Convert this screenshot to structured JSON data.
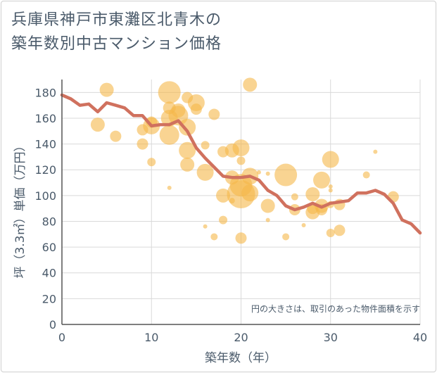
{
  "title_lines": [
    "兵庫県神戸市東灘区北青木の",
    "築年数別中古マンション価格"
  ],
  "colors": {
    "bubble": "#f5b84a",
    "line": "#d0715e",
    "grid": "#d9d9d9",
    "axis_text": "#4a5a6a"
  },
  "chart_data": {
    "type": "scatter",
    "xlabel": "築年数（年）",
    "ylabel": "坪（3.3㎡）単価（万円）",
    "xlim": [
      0,
      40
    ],
    "ylim": [
      0,
      190
    ],
    "x_ticks": [
      0,
      10,
      20,
      30,
      40
    ],
    "y_ticks": [
      0,
      20,
      40,
      60,
      80,
      100,
      120,
      140,
      160,
      180
    ],
    "grid": true,
    "note": "円の大きさは、取引のあった物件面積を示す",
    "bubbles": [
      {
        "x": 4,
        "y": 155,
        "r": 10
      },
      {
        "x": 5,
        "y": 182,
        "r": 10
      },
      {
        "x": 6,
        "y": 146,
        "r": 8
      },
      {
        "x": 9,
        "y": 140,
        "r": 8
      },
      {
        "x": 9,
        "y": 151,
        "r": 8
      },
      {
        "x": 10,
        "y": 154,
        "r": 12
      },
      {
        "x": 10,
        "y": 157,
        "r": 8
      },
      {
        "x": 10,
        "y": 126,
        "r": 6
      },
      {
        "x": 12,
        "y": 180,
        "r": 16
      },
      {
        "x": 12,
        "y": 168,
        "r": 9
      },
      {
        "x": 12,
        "y": 160,
        "r": 12
      },
      {
        "x": 12,
        "y": 147,
        "r": 14
      },
      {
        "x": 12,
        "y": 106,
        "r": 3
      },
      {
        "x": 13,
        "y": 166,
        "r": 10
      },
      {
        "x": 13,
        "y": 162,
        "r": 14
      },
      {
        "x": 14,
        "y": 176,
        "r": 8
      },
      {
        "x": 14,
        "y": 153,
        "r": 12
      },
      {
        "x": 14,
        "y": 135,
        "r": 12
      },
      {
        "x": 14,
        "y": 124,
        "r": 10
      },
      {
        "x": 15,
        "y": 172,
        "r": 12
      },
      {
        "x": 15,
        "y": 167,
        "r": 8
      },
      {
        "x": 16,
        "y": 139,
        "r": 6
      },
      {
        "x": 16,
        "y": 118,
        "r": 12
      },
      {
        "x": 16,
        "y": 76,
        "r": 3
      },
      {
        "x": 17,
        "y": 163,
        "r": 8
      },
      {
        "x": 17,
        "y": 68,
        "r": 5
      },
      {
        "x": 18,
        "y": 134,
        "r": 8
      },
      {
        "x": 18,
        "y": 100,
        "r": 10
      },
      {
        "x": 18,
        "y": 81,
        "r": 6
      },
      {
        "x": 19,
        "y": 135,
        "r": 10
      },
      {
        "x": 19,
        "y": 114,
        "r": 10
      },
      {
        "x": 19,
        "y": 96,
        "r": 4
      },
      {
        "x": 20,
        "y": 137,
        "r": 12
      },
      {
        "x": 20,
        "y": 127,
        "r": 6
      },
      {
        "x": 20,
        "y": 108,
        "r": 16
      },
      {
        "x": 20,
        "y": 101,
        "r": 20
      },
      {
        "x": 20,
        "y": 67,
        "r": 8
      },
      {
        "x": 21,
        "y": 186,
        "r": 10
      },
      {
        "x": 21,
        "y": 115,
        "r": 12
      },
      {
        "x": 21,
        "y": 102,
        "r": 12
      },
      {
        "x": 22,
        "y": 118,
        "r": 3
      },
      {
        "x": 23,
        "y": 117,
        "r": 3
      },
      {
        "x": 23,
        "y": 92,
        "r": 10
      },
      {
        "x": 23,
        "y": 81,
        "r": 3
      },
      {
        "x": 25,
        "y": 116,
        "r": 16
      },
      {
        "x": 25,
        "y": 68,
        "r": 5
      },
      {
        "x": 26,
        "y": 99,
        "r": 5
      },
      {
        "x": 26,
        "y": 89,
        "r": 8
      },
      {
        "x": 27,
        "y": 77,
        "r": 3
      },
      {
        "x": 28,
        "y": 101,
        "r": 10
      },
      {
        "x": 28,
        "y": 90,
        "r": 8
      },
      {
        "x": 28,
        "y": 87,
        "r": 10
      },
      {
        "x": 29,
        "y": 112,
        "r": 12
      },
      {
        "x": 29,
        "y": 92,
        "r": 10
      },
      {
        "x": 29,
        "y": 89,
        "r": 8
      },
      {
        "x": 30,
        "y": 128,
        "r": 12
      },
      {
        "x": 30,
        "y": 107,
        "r": 3
      },
      {
        "x": 30,
        "y": 104,
        "r": 3
      },
      {
        "x": 30,
        "y": 93,
        "r": 5
      },
      {
        "x": 30,
        "y": 71,
        "r": 6
      },
      {
        "x": 31,
        "y": 93,
        "r": 8
      },
      {
        "x": 31,
        "y": 73,
        "r": 8
      },
      {
        "x": 34,
        "y": 116,
        "r": 5
      },
      {
        "x": 35,
        "y": 134,
        "r": 3
      },
      {
        "x": 37,
        "y": 99,
        "r": 8
      }
    ],
    "series": [
      {
        "x": [
          0,
          1,
          2,
          3,
          4,
          5,
          6,
          7,
          8,
          9,
          10,
          11,
          12,
          13,
          14,
          15,
          16,
          17,
          18,
          19,
          20,
          21,
          22,
          23,
          24,
          25,
          26,
          27,
          28,
          29,
          30,
          31,
          32,
          33,
          34,
          35,
          36,
          37,
          38,
          39,
          40
        ],
        "values": [
          178,
          175,
          170,
          171,
          165,
          172,
          170,
          168,
          162,
          162,
          154,
          155,
          155,
          158,
          150,
          137,
          129,
          122,
          115,
          114,
          114,
          115,
          112,
          104,
          100,
          92,
          89,
          91,
          94,
          91,
          94,
          95,
          96,
          102,
          102,
          104,
          101,
          94,
          81,
          78,
          71
        ]
      }
    ]
  }
}
